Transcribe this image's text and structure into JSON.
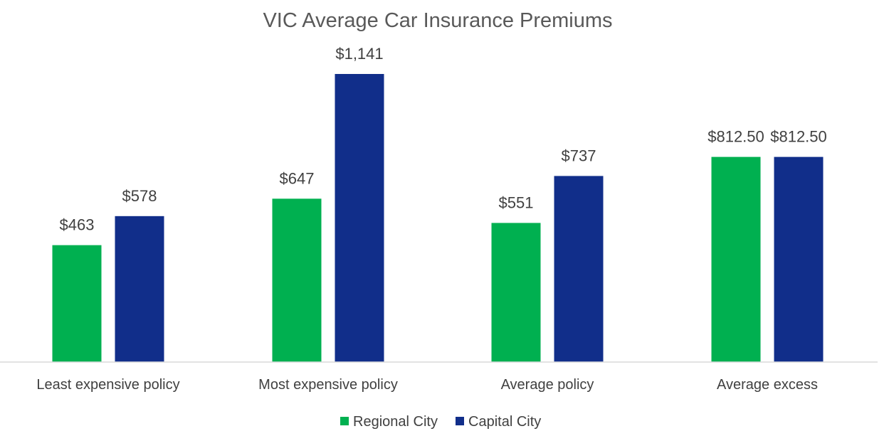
{
  "chart_data": {
    "type": "bar",
    "title": "VIC Average Car Insurance Premiums",
    "xlabel": "",
    "ylabel": "",
    "categories": [
      "Least expensive policy",
      "Most expensive policy",
      "Average policy",
      "Average excess"
    ],
    "series": [
      {
        "name": "Regional City",
        "color": "#00B050",
        "values": [
          463,
          647,
          551,
          812.5
        ],
        "labels": [
          "$463",
          "$647",
          "$551",
          "$812.50"
        ]
      },
      {
        "name": "Capital City",
        "color": "#112E8A",
        "values": [
          578,
          1141,
          737,
          812.5
        ],
        "labels": [
          "$578",
          "$1,141",
          "$737",
          "$812.50"
        ]
      }
    ],
    "ylim": [
      0,
      1141
    ],
    "grid": false,
    "legend": "bottom-center",
    "axis_color": "#D9D9D9"
  }
}
